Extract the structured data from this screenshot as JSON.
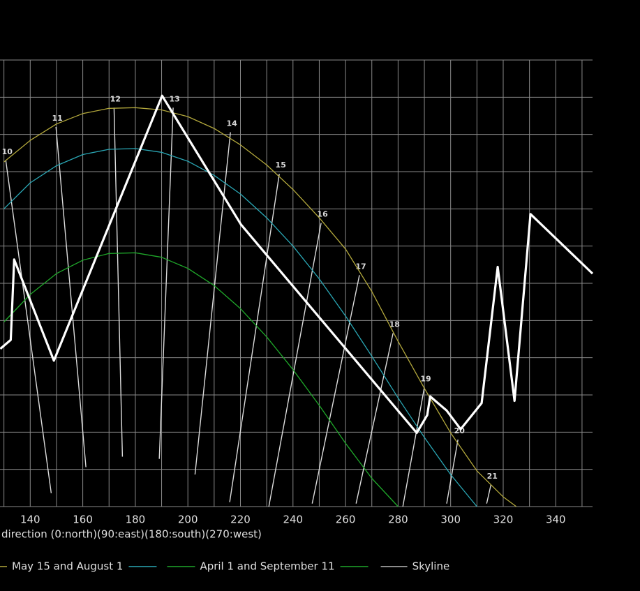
{
  "chart_data": {
    "type": "line",
    "xlabel": "direction (0:north)(90:east)(180:south)(270:west)",
    "xlim": [
      128.5,
      354
    ],
    "xticks": [
      140,
      160,
      180,
      200,
      220,
      240,
      260,
      280,
      300,
      320,
      340
    ],
    "xgrid": [
      130,
      140,
      150,
      160,
      170,
      180,
      190,
      200,
      210,
      220,
      230,
      240,
      250,
      260,
      270,
      280,
      290,
      300,
      310,
      320,
      330,
      340,
      350
    ],
    "ylim": [
      0,
      61.5
    ],
    "ygrid": [
      0,
      5,
      10,
      15,
      20,
      25,
      30,
      35,
      40,
      45,
      50,
      55,
      60
    ],
    "grid": true,
    "series": [
      {
        "color": "#b3a83c",
        "x": [
          130,
          140,
          150,
          160,
          170,
          180,
          190,
          200,
          210,
          220,
          230,
          240,
          250,
          260,
          270,
          280,
          290,
          300,
          310,
          320,
          325
        ],
        "values": [
          46.3,
          49.2,
          51.4,
          52.8,
          53.5,
          53.6,
          53.3,
          52.4,
          50.8,
          48.6,
          45.9,
          42.6,
          38.8,
          34.6,
          28.9,
          22.2,
          15.9,
          9.9,
          4.8,
          1.3,
          0
        ]
      },
      {
        "name": "May 15 and August 1",
        "color": "#2aa7b5",
        "x": [
          130,
          140,
          150,
          160,
          170,
          180,
          190,
          200,
          210,
          220,
          230,
          240,
          250,
          260,
          270,
          280,
          290,
          300,
          310
        ],
        "values": [
          40.0,
          43.5,
          45.8,
          47.3,
          48.0,
          48.1,
          47.6,
          46.4,
          44.5,
          42.0,
          38.8,
          35.0,
          30.6,
          25.6,
          20.2,
          14.6,
          9.3,
          4.3,
          0
        ]
      },
      {
        "name": "April 1 and September 11",
        "color": "#1fa82a",
        "x": [
          130,
          140,
          150,
          160,
          170,
          180,
          190,
          200,
          210,
          220,
          230,
          240,
          250,
          260,
          270,
          280
        ],
        "values": [
          24.8,
          28.5,
          31.3,
          33.1,
          34.0,
          34.1,
          33.5,
          32.0,
          29.7,
          26.6,
          22.8,
          18.4,
          13.6,
          8.5,
          3.8,
          0
        ]
      },
      {
        "name": "Skyline",
        "color": "#ffffff",
        "x": [
          128.6,
          132.6,
          133.9,
          149.0,
          190.2,
          220.2,
          287.1,
          291.1,
          292.2,
          298.5,
          303.8,
          311.8,
          317.9,
          324.3,
          330.4,
          354
        ],
        "values": [
          21.2,
          22.4,
          33.2,
          19.6,
          55.2,
          37.9,
          9.9,
          12.3,
          14.8,
          12.9,
          10.4,
          13.9,
          32.2,
          14.2,
          39.3,
          31.3
        ]
      }
    ],
    "hour_lines": [
      {
        "label": 10,
        "x": [
          130.7,
          148.0
        ],
        "y": [
          46.5,
          1.8
        ]
      },
      {
        "label": 11,
        "x": [
          149.8,
          161.2
        ],
        "y": [
          51.0,
          5.3
        ]
      },
      {
        "label": 12,
        "x": [
          171.9,
          175.1
        ],
        "y": [
          53.6,
          6.7
        ]
      },
      {
        "label": 13,
        "x": [
          194.4,
          189.1
        ],
        "y": [
          53.6,
          6.4
        ]
      },
      {
        "label": 14,
        "x": [
          216.2,
          202.7
        ],
        "y": [
          50.3,
          4.3
        ]
      },
      {
        "label": 15,
        "x": [
          234.8,
          215.9
        ],
        "y": [
          44.7,
          0.6
        ]
      },
      {
        "label": 16,
        "x": [
          250.7,
          230.8
        ],
        "y": [
          38.1,
          0
        ]
      },
      {
        "label": 17,
        "x": [
          265.3,
          247.3
        ],
        "y": [
          31.1,
          0.4
        ]
      },
      {
        "label": 18,
        "x": [
          278.1,
          264.0
        ],
        "y": [
          23.3,
          0.4
        ]
      },
      {
        "label": 19,
        "x": [
          290.0,
          281.8
        ],
        "y": [
          16.0,
          0
        ]
      },
      {
        "label": 20,
        "x": [
          302.8,
          298.5
        ],
        "y": [
          9.0,
          0.4
        ]
      },
      {
        "label": 21,
        "x": [
          315.3,
          313.7
        ],
        "y": [
          2.9,
          0.4
        ]
      }
    ]
  }
}
